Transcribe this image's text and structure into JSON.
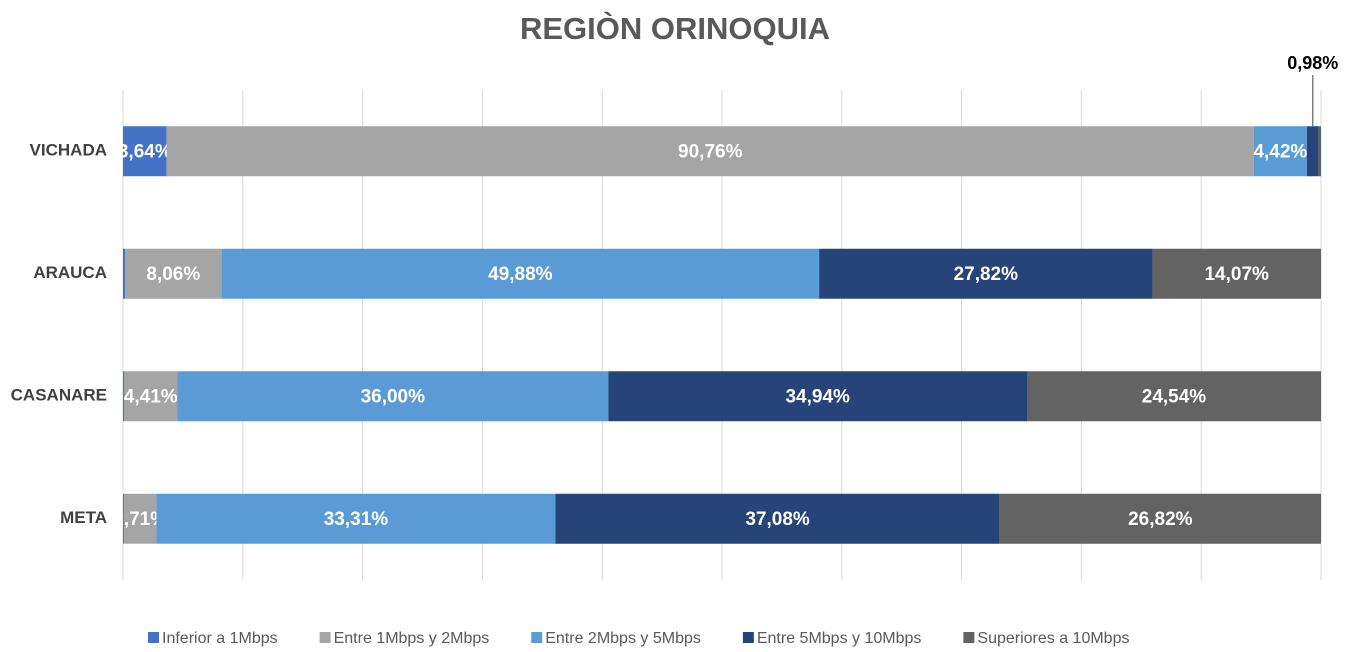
{
  "chart_data": {
    "type": "stacked-bar-horizontal",
    "title": "REGIÒN ORINOQUIA",
    "categories": [
      "VICHADA",
      "ARAUCA",
      "CASANARE",
      "META"
    ],
    "series": [
      {
        "name": "Inferior a 1Mbps",
        "color": "#4472c4",
        "values": [
          3.64,
          0.17,
          0.11,
          0.08
        ],
        "value_labels": [
          "3,64%",
          null,
          null,
          null
        ]
      },
      {
        "name": "Entre 1Mbps y 2Mbps",
        "color": "#a5a5a5",
        "values": [
          90.76,
          8.06,
          4.41,
          2.71
        ],
        "value_labels": [
          "90,76%",
          "8,06%",
          "4,41%",
          "2,71%"
        ]
      },
      {
        "name": "Entre 2Mbps y 5Mbps",
        "color": "#5b9bd5",
        "values": [
          4.42,
          49.88,
          36.0,
          33.31
        ],
        "value_labels": [
          "4,42%",
          "49,88%",
          "36,00%",
          "33,31%"
        ]
      },
      {
        "name": "Entre 5Mbps y 10Mbps",
        "color": "#264478",
        "values": [
          0.98,
          27.82,
          34.94,
          37.08
        ],
        "value_labels": [
          "0,98%",
          "27,82%",
          "34,94%",
          "37,08%"
        ]
      },
      {
        "name": "Superiores a 10Mbps",
        "color": "#636363",
        "values": [
          0.2,
          14.07,
          24.54,
          26.82
        ],
        "value_labels": [
          null,
          "14,07%",
          "24,54%",
          "26,82%"
        ]
      }
    ],
    "xlim": [
      0,
      100
    ],
    "xticks": [
      0,
      10,
      20,
      30,
      40,
      50,
      60,
      70,
      80,
      90,
      100
    ],
    "grid": true,
    "legend": "bottom"
  }
}
